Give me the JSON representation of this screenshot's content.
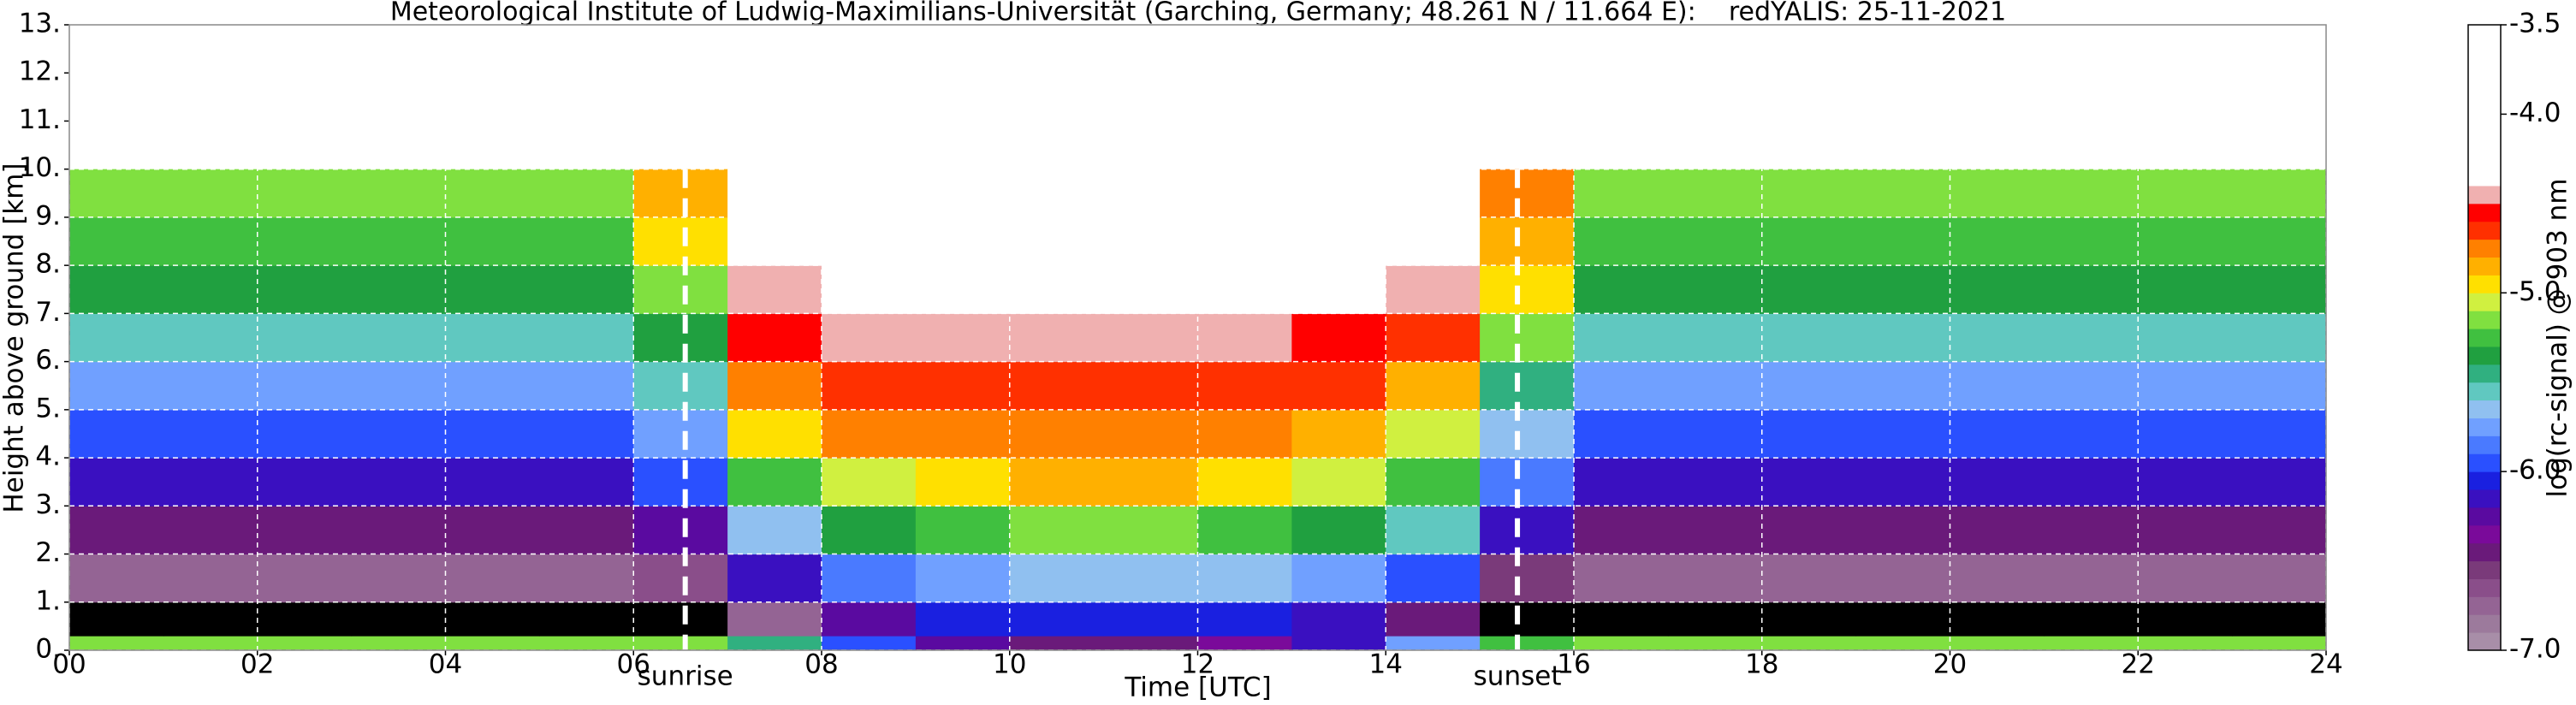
{
  "chart_data": {
    "type": "heatmap",
    "title": "Meteorological Institute of Ludwig-Maximilians-Universität (Garching, Germany; 48.261 N / 11.664 E):    redYALIS: 25-11-2021",
    "x_label": "Time [UTC]",
    "y_label": "Height above ground [km]",
    "colorbar_label": "log(rc-signal) @ 903 nm",
    "xlim": [
      0,
      24
    ],
    "ylim": [
      0,
      13
    ],
    "xticks": [
      {
        "value": 0,
        "label": "00"
      },
      {
        "value": 2,
        "label": "02"
      },
      {
        "value": 4,
        "label": "04"
      },
      {
        "value": 6,
        "label": "06"
      },
      {
        "value": 8,
        "label": "08"
      },
      10,
      12,
      14,
      16,
      18,
      20,
      22,
      24
    ],
    "yticks": [
      {
        "value": 0,
        "label": "0."
      },
      {
        "value": 1,
        "label": "1."
      },
      {
        "value": 2,
        "label": "2."
      },
      {
        "value": 3,
        "label": "3."
      },
      {
        "value": 4,
        "label": "4."
      },
      {
        "value": 5,
        "label": "5."
      },
      {
        "value": 6,
        "label": "6."
      },
      {
        "value": 7,
        "label": "7."
      },
      {
        "value": 8,
        "label": "8."
      },
      {
        "value": 9,
        "label": "9."
      },
      {
        "value": 10,
        "label": "10."
      },
      {
        "value": 11,
        "label": "11."
      },
      {
        "value": 12,
        "label": "12."
      },
      {
        "value": 13,
        "label": "13."
      }
    ],
    "grid": true,
    "grid_color": "#ffffff",
    "zlim": [
      -7,
      -3.5
    ],
    "zticks": [
      {
        "value": -7,
        "label": "-7.0"
      },
      {
        "value": -6,
        "label": "-6.0"
      },
      {
        "value": -5,
        "label": "-5.0"
      },
      {
        "value": -4,
        "label": "-4.0"
      },
      -3.5
    ],
    "under_color": "#000000",
    "color_bounds": [
      -7.0,
      -6.9,
      -6.8,
      -6.7,
      -6.6,
      -6.5,
      -6.4,
      -6.3,
      -6.2,
      -6.1,
      -6.0,
      -5.9,
      -5.8,
      -5.7,
      -5.6,
      -5.5,
      -5.4,
      -5.3,
      -5.2,
      -5.1,
      -5.0,
      -4.9,
      -4.8,
      -4.7,
      -4.6,
      -4.5,
      -4.4,
      -3.5
    ],
    "colors": [
      "#a88ea8",
      "#9c7a9c",
      "#946494",
      "#8a4e8a",
      "#7a3a7a",
      "#6a1a7a",
      "#7a0a9a",
      "#5a0aa0",
      "#3a10c0",
      "#1a20e0",
      "#2a50ff",
      "#4a7aff",
      "#70a0ff",
      "#90c0f0",
      "#60c8c0",
      "#30b080",
      "#20a040",
      "#40c040",
      "#80e040",
      "#d0f040",
      "#ffe000",
      "#ffb000",
      "#ff8000",
      "#ff3000",
      "#ff0000",
      "#f0b0b0",
      "#ffffff"
    ],
    "x_edges": [
      0,
      1,
      2,
      3,
      4,
      5,
      6,
      7,
      8,
      9,
      10,
      11,
      12,
      13,
      14,
      15,
      16,
      17,
      18,
      19,
      20,
      21,
      22,
      23,
      24
    ],
    "y_edges": [
      0,
      0.3,
      1,
      2,
      3,
      4,
      5,
      6,
      7,
      8,
      9,
      10
    ],
    "z": [
      [
        -5.2,
        -5.2,
        -5.2,
        -5.2,
        -5.2,
        -5.2,
        -5.2,
        -5.5,
        -6.0,
        -6.3,
        -6.5,
        -6.5,
        -6.4,
        -6.2,
        -5.8,
        -5.3,
        -5.2,
        -5.2,
        -5.2,
        -5.2,
        -5.2,
        -5.2,
        -5.2,
        -5.2
      ],
      [
        -7.5,
        -7.5,
        -7.5,
        -7.5,
        -7.5,
        -7.5,
        -7.5,
        -6.8,
        -6.3,
        -6.1,
        -6.1,
        -6.1,
        -6.1,
        -6.2,
        -6.5,
        -7.2,
        -7.5,
        -7.5,
        -7.5,
        -7.5,
        -7.5,
        -7.5,
        -7.5,
        -7.5
      ],
      [
        -6.8,
        -6.8,
        -6.8,
        -6.8,
        -6.8,
        -6.8,
        -6.7,
        -6.2,
        -5.9,
        -5.8,
        -5.7,
        -5.7,
        -5.7,
        -5.8,
        -6.0,
        -6.6,
        -6.8,
        -6.8,
        -6.8,
        -6.8,
        -6.8,
        -6.8,
        -6.8,
        -6.8
      ],
      [
        -6.5,
        -6.5,
        -6.5,
        -6.5,
        -6.5,
        -6.5,
        -6.3,
        -5.7,
        -5.4,
        -5.3,
        -5.2,
        -5.2,
        -5.3,
        -5.4,
        -5.6,
        -6.2,
        -6.5,
        -6.5,
        -6.5,
        -6.5,
        -6.5,
        -6.5,
        -6.5,
        -6.5
      ],
      [
        -6.2,
        -6.2,
        -6.2,
        -6.2,
        -6.2,
        -6.2,
        -6.0,
        -5.3,
        -5.1,
        -5.0,
        -4.9,
        -4.9,
        -5.0,
        -5.1,
        -5.3,
        -5.9,
        -6.2,
        -6.2,
        -6.2,
        -6.2,
        -6.2,
        -6.2,
        -6.2,
        -6.2
      ],
      [
        -6.0,
        -6.0,
        -6.0,
        -6.0,
        -6.0,
        -6.0,
        -5.8,
        -5.0,
        -4.8,
        -4.8,
        -4.8,
        -4.8,
        -4.8,
        -4.9,
        -5.1,
        -5.7,
        -6.0,
        -6.0,
        -6.0,
        -6.0,
        -6.0,
        -6.0,
        -6.0,
        -6.0
      ],
      [
        -5.8,
        -5.8,
        -5.8,
        -5.8,
        -5.8,
        -5.8,
        -5.6,
        -4.8,
        -4.7,
        -4.7,
        -4.7,
        -4.7,
        -4.7,
        -4.7,
        -4.9,
        -5.5,
        -5.8,
        -5.8,
        -5.8,
        -5.8,
        -5.8,
        -5.8,
        -5.8,
        -5.8
      ],
      [
        -5.6,
        -5.6,
        -5.6,
        -5.6,
        -5.6,
        -5.6,
        -5.4,
        -4.6,
        -4.5,
        -4.5,
        -4.5,
        -4.5,
        -4.5,
        -4.6,
        -4.7,
        -5.2,
        -5.6,
        -5.6,
        -5.6,
        -5.6,
        -5.6,
        -5.6,
        -5.6,
        -5.6
      ],
      [
        -5.4,
        -5.4,
        -5.4,
        -5.4,
        -5.4,
        -5.4,
        -5.2,
        -4.5,
        -4.4,
        -4.3,
        -4.3,
        -4.3,
        -4.3,
        -4.4,
        -4.5,
        -5.0,
        -5.4,
        -5.4,
        -5.4,
        -5.4,
        -5.4,
        -5.4,
        -5.4,
        -5.4
      ],
      [
        -5.3,
        -5.3,
        -5.3,
        -5.3,
        -5.3,
        -5.3,
        -5.0,
        -4.4,
        -4.2,
        -4.2,
        -4.2,
        -4.2,
        -4.2,
        -4.3,
        -4.4,
        -4.9,
        -5.3,
        -5.3,
        -5.3,
        -5.3,
        -5.3,
        -5.3,
        -5.3,
        -5.3
      ],
      [
        -5.2,
        -5.2,
        -5.2,
        -5.2,
        -5.2,
        -5.2,
        -4.9,
        -4.3,
        -4.1,
        -4.1,
        -4.0,
        -4.0,
        -4.1,
        -4.2,
        -4.3,
        -4.8,
        -5.2,
        -5.2,
        -5.2,
        -5.2,
        -5.2,
        -5.2,
        -5.2,
        -5.2
      ]
    ],
    "annotations": [
      {
        "text": "sunrise",
        "x": 6.55
      },
      {
        "text": "sunset",
        "x": 15.4
      }
    ]
  }
}
